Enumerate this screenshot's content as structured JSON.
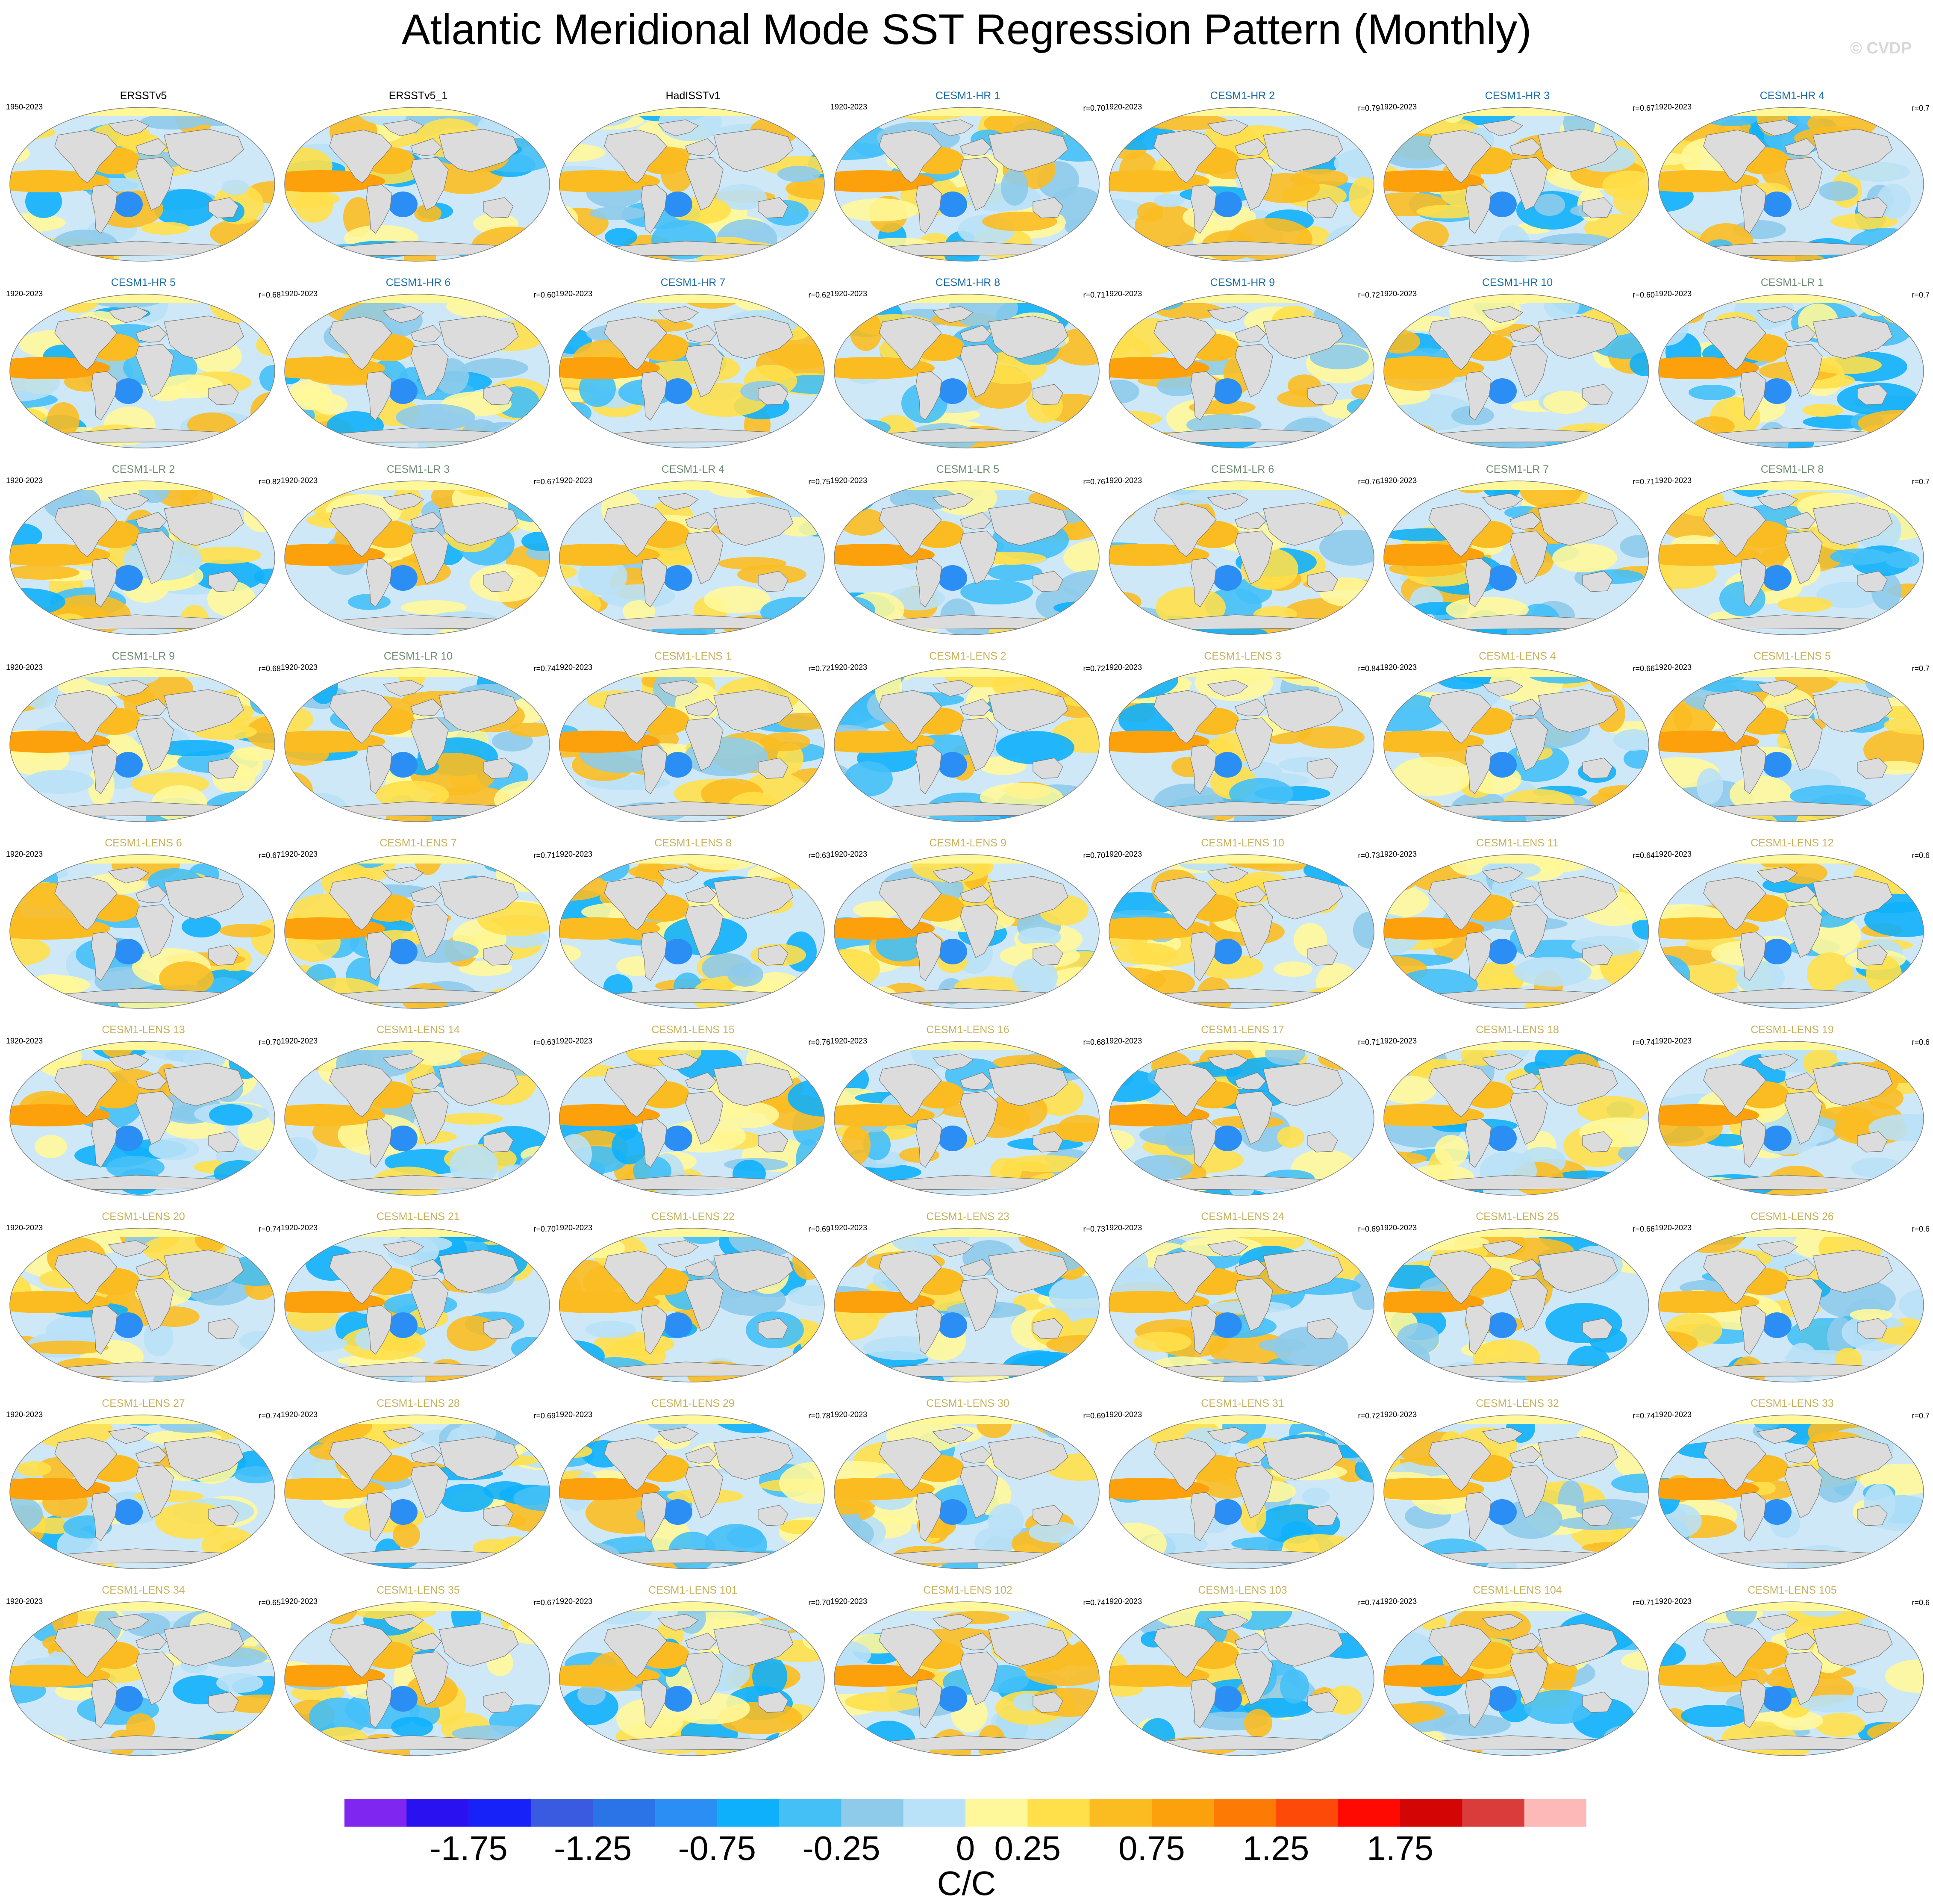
{
  "title": "Atlantic Meridional Mode SST Regression Pattern (Monthly)",
  "watermark": "© CVDP",
  "colors": {
    "observation_label": "#000000",
    "hr_label": "#1f6fa8",
    "lr_label": "#6e8b73",
    "lens_label": "#c9b25e",
    "land": "#dcdcdc",
    "ocean_outline": "#808080"
  },
  "panels": [
    {
      "name": "ERSSTv5",
      "period": "1950-2023",
      "corr": "",
      "group": "obs"
    },
    {
      "name": "ERSSTv5_1",
      "period": "",
      "corr": "",
      "group": "obs"
    },
    {
      "name": "HadISSTv1",
      "period": "",
      "corr": "",
      "group": "obs"
    },
    {
      "name": "CESM1-HR 1",
      "period": "1920-2023",
      "corr": "r=0.70",
      "group": "hr"
    },
    {
      "name": "CESM1-HR 2",
      "period": "1920-2023",
      "corr": "r=0.79",
      "group": "hr"
    },
    {
      "name": "CESM1-HR 3",
      "period": "1920-2023",
      "corr": "r=0.67",
      "group": "hr"
    },
    {
      "name": "CESM1-HR 4",
      "period": "1920-2023",
      "corr": "r=0.7",
      "group": "hr"
    },
    {
      "name": "CESM1-HR 5",
      "period": "1920-2023",
      "corr": "r=0.68",
      "group": "hr"
    },
    {
      "name": "CESM1-HR 6",
      "period": "1920-2023",
      "corr": "r=0.60",
      "group": "hr"
    },
    {
      "name": "CESM1-HR 7",
      "period": "1920-2023",
      "corr": "r=0.62",
      "group": "hr"
    },
    {
      "name": "CESM1-HR 8",
      "period": "1920-2023",
      "corr": "r=0.71",
      "group": "hr"
    },
    {
      "name": "CESM1-HR 9",
      "period": "1920-2023",
      "corr": "r=0.72",
      "group": "hr"
    },
    {
      "name": "CESM1-HR 10",
      "period": "1920-2023",
      "corr": "r=0.60",
      "group": "hr"
    },
    {
      "name": "CESM1-LR 1",
      "period": "1920-2023",
      "corr": "r=0.7",
      "group": "lr"
    },
    {
      "name": "CESM1-LR 2",
      "period": "1920-2023",
      "corr": "r=0.82",
      "group": "lr"
    },
    {
      "name": "CESM1-LR 3",
      "period": "1920-2023",
      "corr": "r=0.67",
      "group": "lr"
    },
    {
      "name": "CESM1-LR 4",
      "period": "1920-2023",
      "corr": "r=0.75",
      "group": "lr"
    },
    {
      "name": "CESM1-LR 5",
      "period": "1920-2023",
      "corr": "r=0.76",
      "group": "lr"
    },
    {
      "name": "CESM1-LR 6",
      "period": "1920-2023",
      "corr": "r=0.76",
      "group": "lr"
    },
    {
      "name": "CESM1-LR 7",
      "period": "1920-2023",
      "corr": "r=0.71",
      "group": "lr"
    },
    {
      "name": "CESM1-LR 8",
      "period": "1920-2023",
      "corr": "r=0.7",
      "group": "lr"
    },
    {
      "name": "CESM1-LR 9",
      "period": "1920-2023",
      "corr": "r=0.68",
      "group": "lr"
    },
    {
      "name": "CESM1-LR 10",
      "period": "1920-2023",
      "corr": "r=0.74",
      "group": "lr"
    },
    {
      "name": "CESM1-LENS 1",
      "period": "1920-2023",
      "corr": "r=0.72",
      "group": "lens"
    },
    {
      "name": "CESM1-LENS 2",
      "period": "1920-2023",
      "corr": "r=0.72",
      "group": "lens"
    },
    {
      "name": "CESM1-LENS 3",
      "period": "1920-2023",
      "corr": "r=0.84",
      "group": "lens"
    },
    {
      "name": "CESM1-LENS 4",
      "period": "1920-2023",
      "corr": "r=0.66",
      "group": "lens"
    },
    {
      "name": "CESM1-LENS 5",
      "period": "1920-2023",
      "corr": "r=0.7",
      "group": "lens"
    },
    {
      "name": "CESM1-LENS 6",
      "period": "1920-2023",
      "corr": "r=0.67",
      "group": "lens"
    },
    {
      "name": "CESM1-LENS 7",
      "period": "1920-2023",
      "corr": "r=0.71",
      "group": "lens"
    },
    {
      "name": "CESM1-LENS 8",
      "period": "1920-2023",
      "corr": "r=0.63",
      "group": "lens"
    },
    {
      "name": "CESM1-LENS 9",
      "period": "1920-2023",
      "corr": "r=0.70",
      "group": "lens"
    },
    {
      "name": "CESM1-LENS 10",
      "period": "1920-2023",
      "corr": "r=0.73",
      "group": "lens"
    },
    {
      "name": "CESM1-LENS 11",
      "period": "1920-2023",
      "corr": "r=0.64",
      "group": "lens"
    },
    {
      "name": "CESM1-LENS 12",
      "period": "1920-2023",
      "corr": "r=0.6",
      "group": "lens"
    },
    {
      "name": "CESM1-LENS 13",
      "period": "1920-2023",
      "corr": "r=0.70",
      "group": "lens"
    },
    {
      "name": "CESM1-LENS 14",
      "period": "1920-2023",
      "corr": "r=0.63",
      "group": "lens"
    },
    {
      "name": "CESM1-LENS 15",
      "period": "1920-2023",
      "corr": "r=0.76",
      "group": "lens"
    },
    {
      "name": "CESM1-LENS 16",
      "period": "1920-2023",
      "corr": "r=0.68",
      "group": "lens"
    },
    {
      "name": "CESM1-LENS 17",
      "period": "1920-2023",
      "corr": "r=0.71",
      "group": "lens"
    },
    {
      "name": "CESM1-LENS 18",
      "period": "1920-2023",
      "corr": "r=0.74",
      "group": "lens"
    },
    {
      "name": "CESM1-LENS 19",
      "period": "1920-2023",
      "corr": "r=0.6",
      "group": "lens"
    },
    {
      "name": "CESM1-LENS 20",
      "period": "1920-2023",
      "corr": "r=0.74",
      "group": "lens"
    },
    {
      "name": "CESM1-LENS 21",
      "period": "1920-2023",
      "corr": "r=0.70",
      "group": "lens"
    },
    {
      "name": "CESM1-LENS 22",
      "period": "1920-2023",
      "corr": "r=0.69",
      "group": "lens"
    },
    {
      "name": "CESM1-LENS 23",
      "period": "1920-2023",
      "corr": "r=0.73",
      "group": "lens"
    },
    {
      "name": "CESM1-LENS 24",
      "period": "1920-2023",
      "corr": "r=0.69",
      "group": "lens"
    },
    {
      "name": "CESM1-LENS 25",
      "period": "1920-2023",
      "corr": "r=0.66",
      "group": "lens"
    },
    {
      "name": "CESM1-LENS 26",
      "period": "1920-2023",
      "corr": "r=0.6",
      "group": "lens"
    },
    {
      "name": "CESM1-LENS 27",
      "period": "1920-2023",
      "corr": "r=0.74",
      "group": "lens"
    },
    {
      "name": "CESM1-LENS 28",
      "period": "1920-2023",
      "corr": "r=0.69",
      "group": "lens"
    },
    {
      "name": "CESM1-LENS 29",
      "period": "1920-2023",
      "corr": "r=0.78",
      "group": "lens"
    },
    {
      "name": "CESM1-LENS 30",
      "period": "1920-2023",
      "corr": "r=0.69",
      "group": "lens"
    },
    {
      "name": "CESM1-LENS 31",
      "period": "1920-2023",
      "corr": "r=0.72",
      "group": "lens"
    },
    {
      "name": "CESM1-LENS 32",
      "period": "1920-2023",
      "corr": "r=0.74",
      "group": "lens"
    },
    {
      "name": "CESM1-LENS 33",
      "period": "1920-2023",
      "corr": "r=0.7",
      "group": "lens"
    },
    {
      "name": "CESM1-LENS 34",
      "period": "1920-2023",
      "corr": "r=0.65",
      "group": "lens"
    },
    {
      "name": "CESM1-LENS 35",
      "period": "1920-2023",
      "corr": "r=0.67",
      "group": "lens"
    },
    {
      "name": "CESM1-LENS 101",
      "period": "1920-2023",
      "corr": "r=0.70",
      "group": "lens"
    },
    {
      "name": "CESM1-LENS 102",
      "period": "1920-2023",
      "corr": "r=0.74",
      "group": "lens"
    },
    {
      "name": "CESM1-LENS 103",
      "period": "1920-2023",
      "corr": "r=0.74",
      "group": "lens"
    },
    {
      "name": "CESM1-LENS 104",
      "period": "1920-2023",
      "corr": "r=0.71",
      "group": "lens"
    },
    {
      "name": "CESM1-LENS 105",
      "period": "1920-2023",
      "corr": "r=0.6",
      "group": "lens"
    }
  ],
  "colorbar": {
    "colors": [
      "#7f27f0",
      "#2a12f0",
      "#1722f8",
      "#3a5be0",
      "#2a74e8",
      "#2b8ef4",
      "#0fb0fb",
      "#44c0f7",
      "#8ecbea",
      "#b9e1f7",
      "#fff89a",
      "#ffe04a",
      "#fbbc22",
      "#fca10b",
      "#fd7a05",
      "#fe4a08",
      "#fe0a03",
      "#d40505",
      "#da3c3c",
      "#fdb8b8"
    ],
    "labels": [
      "-1.75",
      "-1.25",
      "-0.75",
      "-0.25",
      "0",
      "0.25",
      "0.75",
      "1.25",
      "1.75"
    ],
    "label_boundaries": [
      2,
      4,
      6,
      8,
      10,
      11,
      13,
      15,
      17
    ],
    "units": "C/C"
  }
}
